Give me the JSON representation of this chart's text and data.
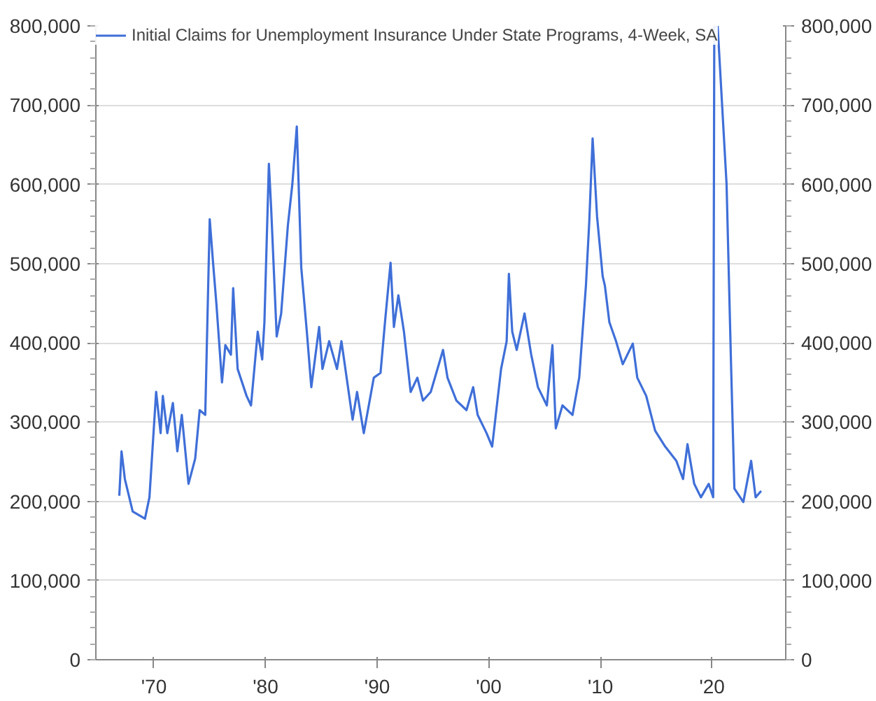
{
  "chart_data": {
    "type": "line",
    "x": [
      1966.9,
      1967.1,
      1967.4,
      1968.1,
      1969.2,
      1969.6,
      1970.2,
      1970.6,
      1970.8,
      1971.2,
      1971.7,
      1972.1,
      1972.5,
      1973.1,
      1973.7,
      1974.1,
      1974.6,
      1975.0,
      1975.3,
      1975.6,
      1976.1,
      1976.4,
      1976.9,
      1977.1,
      1977.5,
      1978.3,
      1978.7,
      1979.3,
      1979.7,
      1979.9,
      1980.3,
      1980.5,
      1981.0,
      1981.4,
      1982.0,
      1982.4,
      1982.8,
      1983.2,
      1983.7,
      1984.1,
      1984.8,
      1985.1,
      1985.7,
      1986.4,
      1986.8,
      1987.8,
      1988.2,
      1988.8,
      1989.7,
      1990.3,
      1990.7,
      1991.2,
      1991.5,
      1991.9,
      1992.4,
      1993.0,
      1993.6,
      1994.1,
      1994.8,
      1995.9,
      1996.3,
      1997.1,
      1998.0,
      1998.6,
      1999.0,
      1999.8,
      2000.3,
      2001.1,
      2001.6,
      2001.8,
      2002.1,
      2002.5,
      2003.2,
      2003.8,
      2004.4,
      2005.2,
      2005.7,
      2006.0,
      2006.6,
      2007.5,
      2008.1,
      2008.7,
      2009.0,
      2009.3,
      2009.7,
      2010.2,
      2010.4,
      2010.8,
      2011.4,
      2012.0,
      2012.9,
      2013.3,
      2014.1,
      2014.9,
      2015.8,
      2016.8,
      2017.4,
      2017.8,
      2018.4,
      2019.0,
      2019.7,
      2020.1,
      2020.2,
      2020.5,
      2021.3,
      2021.7,
      2022.0,
      2022.8,
      2023.5,
      2023.9,
      2024.4
    ],
    "series": [
      {
        "name": "Initial Claims for Unemployment Insurance Under State Programs, 4-Week, SA",
        "color": "#3f6fd8",
        "values": [
          207000,
          263000,
          228000,
          187000,
          178000,
          205000,
          338000,
          286000,
          333000,
          286000,
          324000,
          263000,
          309000,
          222000,
          254000,
          315000,
          309000,
          556000,
          501000,
          449000,
          350000,
          397000,
          385000,
          469000,
          367000,
          333000,
          321000,
          414000,
          379000,
          426000,
          626000,
          571000,
          408000,
          437000,
          548000,
          600000,
          673000,
          495000,
          414000,
          344000,
          420000,
          367000,
          402000,
          367000,
          402000,
          303000,
          338000,
          286000,
          356000,
          362000,
          426000,
          501000,
          420000,
          460000,
          414000,
          338000,
          356000,
          327000,
          338000,
          391000,
          356000,
          327000,
          315000,
          344000,
          309000,
          286000,
          269000,
          367000,
          402000,
          487000,
          414000,
          391000,
          437000,
          385000,
          344000,
          321000,
          397000,
          292000,
          321000,
          309000,
          356000,
          472000,
          553000,
          658000,
          559000,
          484000,
          472000,
          426000,
          402000,
          373000,
          399000,
          356000,
          333000,
          289000,
          269000,
          251000,
          228000,
          272000,
          222000,
          205000,
          222000,
          205000,
          800000,
          800000,
          600000,
          373000,
          216000,
          199000,
          251000,
          205000,
          213000
        ]
      }
    ],
    "xlim": [
      1964.8,
      2026.6
    ],
    "xticks": [
      {
        "value": 1970,
        "label": "'70"
      },
      {
        "value": 1980,
        "label": "'80"
      },
      {
        "value": 1990,
        "label": "'90"
      },
      {
        "value": 2000,
        "label": "'00"
      },
      {
        "value": 2010,
        "label": "'10"
      },
      {
        "value": 2020,
        "label": "'20"
      }
    ],
    "ylim": [
      0,
      800000
    ],
    "yticks": [
      0,
      {
        "value": 100000,
        "label": "100,000"
      },
      {
        "value": 200000,
        "label": "200,000"
      },
      {
        "value": 300000,
        "label": "300,000"
      },
      {
        "value": 400000,
        "label": "400,000"
      },
      {
        "value": 500000,
        "label": "500,000"
      },
      {
        "value": 600000,
        "label": "600,000"
      },
      {
        "value": 700000,
        "label": "700,000"
      },
      {
        "value": 800000,
        "label": "800,000"
      }
    ],
    "y2lim": [
      0,
      800000
    ],
    "y2ticks": [
      0,
      {
        "value": 100000,
        "label": "100,000"
      },
      {
        "value": 200000,
        "label": "200,000"
      },
      {
        "value": 300000,
        "label": "300,000"
      },
      {
        "value": 400000,
        "label": "400,000"
      },
      {
        "value": 500000,
        "label": "500,000"
      },
      {
        "value": 600000,
        "label": "600,000"
      },
      {
        "value": 700000,
        "label": "700,000"
      },
      {
        "value": 800000,
        "label": "800,000"
      }
    ],
    "grid": "y",
    "legend": "top left",
    "line_style": "solid"
  }
}
